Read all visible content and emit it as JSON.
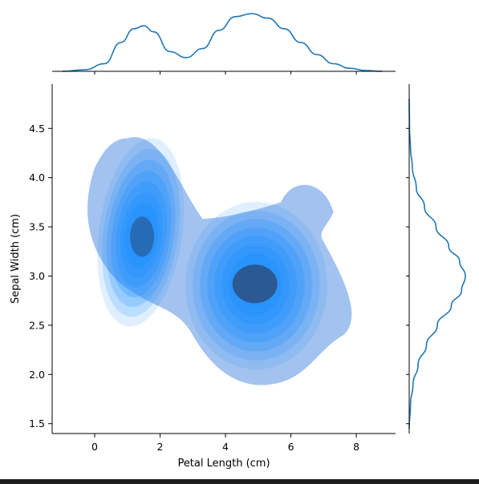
{
  "chart_data": {
    "type": "kde-joint",
    "xlabel": "Petal Length (cm)",
    "ylabel": "Sepal Width (cm)",
    "xlim": [
      -1.3,
      9.2
    ],
    "ylim": [
      1.4,
      4.95
    ],
    "xticks": [
      0,
      2,
      4,
      6,
      8
    ],
    "yticks": [
      1.5,
      2.0,
      2.5,
      3.0,
      3.5,
      4.0,
      4.5
    ],
    "fill_color": "#1e90ff",
    "line_color": "#1f77b4",
    "clusters": [
      {
        "center_x": 1.45,
        "center_y": 3.4,
        "peak_y": 3.4
      },
      {
        "center_x": 4.9,
        "center_y": 2.92,
        "peak_y": 2.9
      }
    ],
    "contour_levels": 9,
    "marginal_x": {
      "x": [
        -1.0,
        -0.3,
        0.3,
        0.8,
        1.2,
        1.5,
        1.8,
        2.3,
        2.8,
        3.3,
        3.8,
        4.3,
        4.8,
        5.3,
        5.8,
        6.3,
        6.8,
        7.3,
        7.8,
        8.3,
        8.8
      ],
      "density": [
        0.0,
        0.01,
        0.05,
        0.19,
        0.28,
        0.3,
        0.26,
        0.13,
        0.09,
        0.15,
        0.27,
        0.36,
        0.38,
        0.35,
        0.28,
        0.19,
        0.11,
        0.05,
        0.02,
        0.005,
        0.0
      ]
    },
    "marginal_y": {
      "y": [
        1.45,
        1.7,
        1.9,
        2.1,
        2.3,
        2.5,
        2.7,
        2.85,
        3.0,
        3.15,
        3.3,
        3.5,
        3.7,
        3.9,
        4.1,
        4.3,
        4.5,
        4.8
      ],
      "density": [
        0.0,
        0.02,
        0.06,
        0.14,
        0.27,
        0.44,
        0.66,
        0.82,
        0.88,
        0.79,
        0.62,
        0.42,
        0.24,
        0.11,
        0.05,
        0.02,
        0.005,
        0.0
      ]
    }
  }
}
